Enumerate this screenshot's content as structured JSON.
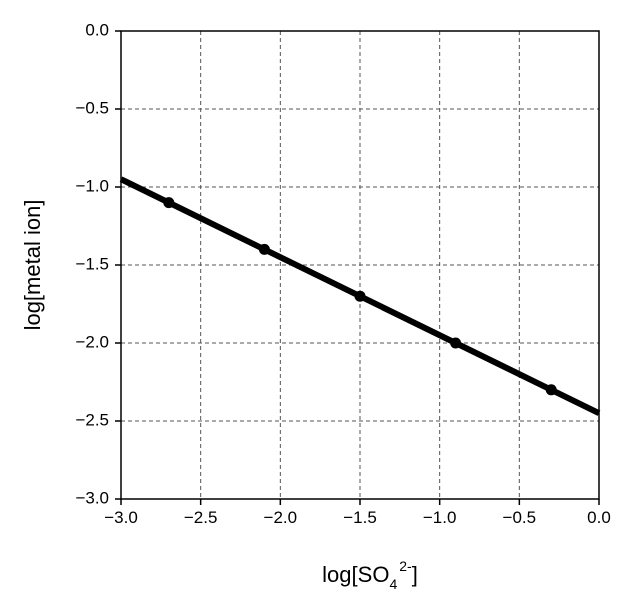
{
  "chart_data": {
    "type": "line",
    "xlabel": {
      "text": "log[SO",
      "sub": "4",
      "sup": "2-",
      "end": "]"
    },
    "ylabel": "log[metal ion]",
    "series": [
      {
        "style": "line",
        "color": "#000000",
        "x": [
          -3.0,
          0.0
        ],
        "values": [
          -0.95,
          -2.45
        ]
      },
      {
        "style": "points",
        "color": "#000000",
        "x": [
          -2.7,
          -2.1,
          -1.5,
          -0.9,
          -0.3
        ],
        "values": [
          -1.1,
          -1.4,
          -1.7,
          -2.0,
          -2.3
        ]
      }
    ],
    "xlim": [
      -3.0,
      0.0
    ],
    "ylim": [
      -3.0,
      0.0
    ],
    "xticks": [
      {
        "value": -3,
        "label": "−3.0"
      },
      {
        "value": -2.5,
        "label": "−2.5"
      },
      {
        "value": -2,
        "label": "−2.0"
      },
      {
        "value": -1.5,
        "label": "−1.5"
      },
      {
        "value": -1,
        "label": "−1.0"
      },
      {
        "value": -0.5,
        "label": "−0.5"
      },
      {
        "value": 0,
        "label": "0.0"
      }
    ],
    "yticks": [
      {
        "value": 0,
        "label": "0.0"
      },
      {
        "value": -0.5,
        "label": "−0.5"
      },
      {
        "value": -1,
        "label": "−1.0"
      },
      {
        "value": -1.5,
        "label": "−1.5"
      },
      {
        "value": -2,
        "label": "−2.0"
      },
      {
        "value": -2.5,
        "label": "−2.5"
      },
      {
        "value": -3,
        "label": "−3.0"
      }
    ],
    "grid": true
  }
}
